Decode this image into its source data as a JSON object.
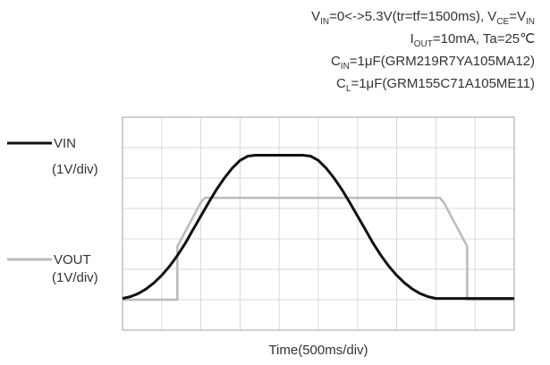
{
  "chart_data": {
    "type": "line",
    "conditions": {
      "line1": {
        "vin_main": "V",
        "vin_sub": "IN",
        "part_a": "=0<->5.3V(tr=tf=1500ms),  ",
        "vce_main": "V",
        "vce_sub": "CE",
        "part_b": "=",
        "vin2_main": "V",
        "vin2_sub": "IN"
      },
      "line2": {
        "iout_main": "I",
        "iout_sub": "OUT",
        "rest": "=10mA, Ta=25℃"
      },
      "line3": {
        "cin_main": "C",
        "cin_sub": "IN",
        "rest": "=1μF(GRM219R7YA105MA12)"
      },
      "line4": {
        "cl_main": "C",
        "cl_sub": "L",
        "rest": "=1μF(GRM155C71A105ME11)"
      }
    },
    "xlabel": "Time(500ms/div)",
    "x_divisions": 10,
    "y_divisions": 7,
    "grid": true,
    "series": [
      {
        "name": "VIN",
        "unit_label": "(1V/div)",
        "color": "#111111",
        "x": [
          0,
          0.1,
          0.2,
          0.3,
          0.4,
          0.5,
          0.6,
          0.7,
          0.8,
          0.9,
          1.0,
          1.1,
          1.2,
          1.3,
          1.4,
          1.5,
          1.6,
          1.7,
          2.3,
          2.4,
          2.5,
          2.6,
          2.7,
          2.8,
          2.9,
          3.0,
          3.1,
          3.2,
          3.3,
          3.4,
          3.5,
          3.6,
          3.7,
          3.8,
          3.9,
          4.0,
          4.1,
          4.2,
          4.3,
          4.4,
          4.5,
          4.6,
          4.7,
          4.8,
          4.9,
          5.0
        ],
        "y": [
          0.04,
          0.1,
          0.2,
          0.35,
          0.55,
          0.8,
          1.1,
          1.45,
          1.85,
          2.3,
          2.75,
          3.2,
          3.62,
          4.0,
          4.32,
          4.58,
          4.72,
          4.75,
          4.75,
          4.72,
          4.58,
          4.32,
          4.0,
          3.62,
          3.2,
          2.75,
          2.3,
          1.85,
          1.45,
          1.1,
          0.8,
          0.55,
          0.35,
          0.2,
          0.1,
          0.04,
          0.04,
          0.04,
          0.04,
          0.04,
          0.04,
          0.04,
          0.04,
          0.04,
          0.04,
          0.04
        ]
      },
      {
        "name": "VOUT",
        "unit_label": "(1V/div)",
        "color": "#bbbbbb",
        "x": [
          0,
          0.7,
          0.7,
          1.0,
          1.05,
          4.05,
          4.1,
          4.4,
          4.4,
          5.0
        ],
        "y": [
          0,
          0,
          1.75,
          3.2,
          3.35,
          3.35,
          3.2,
          1.75,
          0,
          0
        ]
      }
    ]
  }
}
